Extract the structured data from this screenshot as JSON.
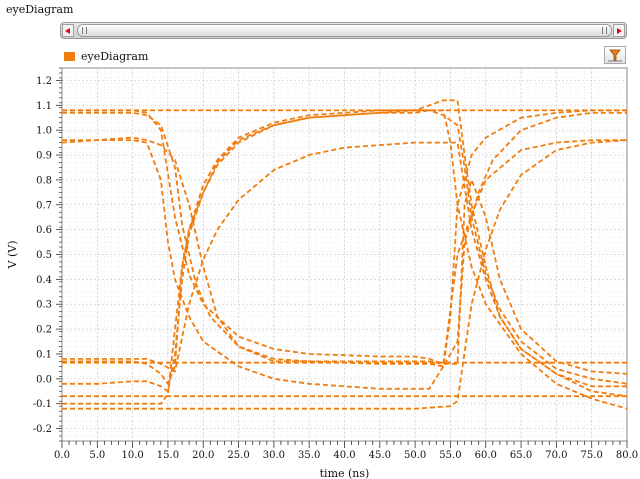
{
  "window": {
    "title": "eyeDiagram"
  },
  "legend": {
    "label": "eyeDiagram",
    "color": "#f07d10"
  },
  "toolbar": {
    "filter_icon": "filter-icon"
  },
  "chart_data": {
    "type": "line",
    "title": "",
    "legend": [
      "eyeDiagram"
    ],
    "legend_placement": "top-left",
    "xlabel": "time (ns)",
    "ylabel": "V (V)",
    "xlim": [
      0,
      80
    ],
    "ylim": [
      -0.25,
      1.25
    ],
    "xticks": [
      "0.0",
      "5.0",
      "10.0",
      "15.0",
      "20.0",
      "25.0",
      "30.0",
      "35.0",
      "40.0",
      "45.0",
      "50.0",
      "55.0",
      "60.0",
      "65.0",
      "70.0",
      "75.0",
      "80.0"
    ],
    "yticks": [
      "-0.2",
      "-0.1",
      "0.0",
      "0.1",
      "0.2",
      "0.3",
      "0.4",
      "0.5",
      "0.6",
      "0.7",
      "0.8",
      "0.9",
      "1.0",
      "1.1",
      "1.2"
    ],
    "grid": true,
    "line_style": "dashed",
    "series_color": "#f07d10",
    "series": [
      {
        "name": "eyeDiagram",
        "segments": [
          {
            "x": [
              0,
              5,
              10,
              12,
              14,
              16,
              18,
              20,
              25,
              30,
              35,
              40,
              45,
              50,
              52,
              54,
              56,
              58,
              60,
              65,
              70,
              75,
              80
            ],
            "y": [
              1.08,
              1.08,
              1.08,
              1.07,
              1.0,
              0.65,
              0.42,
              0.3,
              0.17,
              0.12,
              0.1,
              0.095,
              0.09,
              0.09,
              0.08,
              0.06,
              0.5,
              0.66,
              0.8,
              0.92,
              0.95,
              0.96,
              0.96
            ]
          },
          {
            "x": [
              0,
              5,
              10,
              12,
              14,
              16,
              17,
              19,
              21,
              25,
              30,
              35,
              40,
              45,
              50,
              52,
              54,
              56,
              57,
              59,
              61,
              65,
              70,
              75,
              80
            ],
            "y": [
              1.07,
              1.07,
              1.07,
              1.06,
              1.02,
              0.85,
              0.62,
              0.38,
              0.25,
              0.13,
              0.08,
              0.07,
              0.065,
              0.06,
              0.06,
              0.06,
              0.05,
              0.15,
              0.55,
              0.75,
              0.88,
              1.0,
              1.05,
              1.07,
              1.07
            ]
          },
          {
            "x": [
              0,
              5,
              10,
              12,
              14,
              15,
              16,
              18,
              20,
              25,
              30,
              35,
              40,
              45,
              50,
              52,
              54,
              55,
              56,
              58,
              60,
              65,
              70,
              75,
              80
            ],
            "y": [
              0.95,
              0.96,
              0.96,
              0.95,
              0.8,
              0.55,
              0.4,
              0.25,
              0.15,
              0.05,
              0.0,
              -0.02,
              -0.03,
              -0.04,
              -0.04,
              -0.04,
              0.05,
              0.25,
              0.7,
              0.9,
              0.97,
              1.05,
              1.07,
              1.08,
              1.08
            ]
          },
          {
            "x": [
              0,
              5,
              10,
              12,
              14,
              16,
              18,
              20,
              22,
              25,
              30,
              35,
              40,
              45,
              50,
              52,
              54,
              56,
              57,
              58,
              60,
              62,
              65,
              70,
              75,
              80
            ],
            "y": [
              0.96,
              0.96,
              0.97,
              0.96,
              0.94,
              0.88,
              0.7,
              0.45,
              0.25,
              0.13,
              0.07,
              0.07,
              0.07,
              0.07,
              0.07,
              0.07,
              0.06,
              0.06,
              0.7,
              0.8,
              0.65,
              0.4,
              0.2,
              0.07,
              0.03,
              0.02
            ]
          },
          {
            "x": [
              0,
              5,
              10,
              12,
              14,
              15,
              16,
              17,
              18,
              20,
              22,
              25,
              30,
              35,
              40,
              45,
              50,
              52,
              54,
              56,
              57,
              58,
              60,
              62,
              65,
              70,
              75,
              80
            ],
            "y": [
              0.07,
              0.07,
              0.07,
              0.06,
              0.02,
              -0.02,
              0.05,
              0.45,
              0.6,
              0.78,
              0.88,
              0.97,
              1.03,
              1.06,
              1.07,
              1.08,
              1.08,
              1.08,
              1.06,
              1.02,
              0.85,
              0.65,
              0.42,
              0.28,
              0.15,
              0.04,
              0.0,
              -0.02
            ]
          },
          {
            "x": [
              0,
              5,
              10,
              12,
              14,
              15,
              16,
              17,
              18,
              20,
              22,
              25,
              30,
              35,
              40,
              45,
              50,
              52,
              54,
              56,
              57,
              58,
              60,
              62,
              65,
              70,
              75,
              80
            ],
            "y": [
              -0.02,
              -0.02,
              -0.01,
              -0.01,
              -0.03,
              -0.05,
              0.1,
              0.4,
              0.58,
              0.75,
              0.87,
              0.96,
              1.02,
              1.05,
              1.06,
              1.07,
              1.08,
              1.1,
              1.12,
              1.12,
              0.9,
              0.7,
              0.45,
              0.25,
              0.12,
              0.02,
              -0.05,
              -0.07
            ]
          },
          {
            "x": [
              0,
              5,
              10,
              12,
              14,
              16,
              18,
              20,
              22,
              25,
              30,
              35,
              40,
              45,
              50,
              52,
              54,
              56,
              58,
              60,
              62,
              65,
              70,
              75,
              80
            ],
            "y": [
              0.08,
              0.08,
              0.08,
              0.08,
              0.06,
              0.03,
              0.3,
              0.48,
              0.6,
              0.72,
              0.84,
              0.9,
              0.93,
              0.94,
              0.95,
              0.95,
              0.95,
              0.95,
              0.6,
              0.4,
              0.25,
              0.12,
              0.02,
              -0.03,
              -0.03
            ]
          },
          {
            "x": [
              0,
              5,
              10,
              14,
              15,
              16,
              17,
              18,
              20,
              22,
              25,
              30,
              35,
              40,
              45,
              50,
              52,
              54,
              55,
              56,
              58,
              60,
              65,
              70,
              75,
              80
            ],
            "y": [
              -0.1,
              -0.1,
              -0.1,
              -0.1,
              -0.06,
              0.2,
              0.45,
              0.6,
              0.75,
              0.86,
              0.95,
              1.02,
              1.05,
              1.06,
              1.07,
              1.07,
              1.08,
              1.08,
              0.95,
              0.7,
              0.45,
              0.3,
              0.1,
              -0.02,
              -0.08,
              -0.12
            ]
          },
          {
            "x": [
              0,
              10,
              20,
              30,
              40,
              50,
              55,
              56,
              58,
              60,
              62,
              65,
              70,
              75,
              80
            ],
            "y": [
              -0.12,
              -0.12,
              -0.12,
              -0.12,
              -0.12,
              -0.12,
              -0.11,
              -0.09,
              0.3,
              0.52,
              0.68,
              0.82,
              0.92,
              0.95,
              0.96
            ]
          },
          {
            "x": [
              0,
              20,
              40,
              55,
              80
            ],
            "y": [
              1.08,
              1.08,
              1.08,
              1.08,
              1.08
            ]
          },
          {
            "x": [
              0,
              20,
              40,
              55,
              80
            ],
            "y": [
              0.065,
              0.065,
              0.065,
              0.065,
              0.065
            ]
          },
          {
            "x": [
              0,
              20,
              40,
              60,
              80
            ],
            "y": [
              -0.07,
              -0.07,
              -0.07,
              -0.07,
              -0.07
            ]
          }
        ]
      }
    ]
  }
}
